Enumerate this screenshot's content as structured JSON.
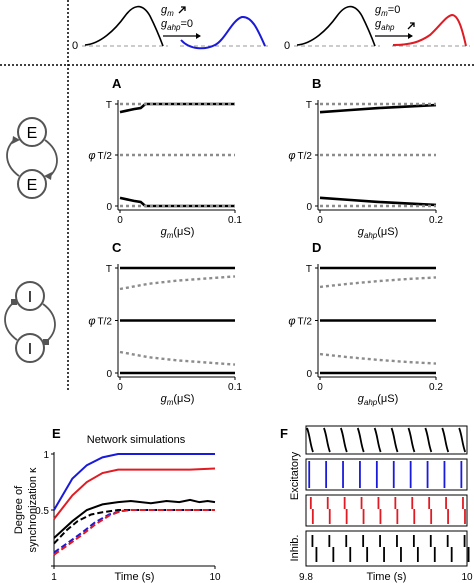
{
  "colors": {
    "black": "#000000",
    "blue": "#1a1adb",
    "red": "#e01b24",
    "gray": "#8c8c8c"
  },
  "header": {
    "left_zero": "0",
    "left_line1": "g",
    "left_line1_sub": "m",
    "left_line2": "g",
    "left_line2_sub": "ahp",
    "left_line2_rest": "=0",
    "right_zero": "0",
    "right_line1": "g",
    "right_line1_sub": "m",
    "right_line1_rest": "=0",
    "right_line2": "g",
    "right_line2_sub": "ahp"
  },
  "circuits": {
    "excitatory_node": "E",
    "inhibitory_node": "I"
  },
  "chart_data": [
    {
      "panel": "A",
      "type": "line",
      "ylabel": "φ",
      "xlabel": "g",
      "xlabel_sub": "m",
      "xunit": "(μS)",
      "xticks": [
        "0",
        "0.1"
      ],
      "yticks": [
        "0",
        "T/2",
        "T"
      ],
      "xlim": [
        0,
        0.1
      ],
      "ylim": [
        0,
        1
      ],
      "series": [
        {
          "style": "solid",
          "x": [
            0,
            0.008,
            0.012,
            0.018,
            0.022,
            0.1
          ],
          "y": [
            0.92,
            0.94,
            0.95,
            0.96,
            1.0,
            1.0
          ]
        },
        {
          "style": "solid",
          "x": [
            0,
            0.008,
            0.012,
            0.018,
            0.022,
            0.1
          ],
          "y": [
            0.08,
            0.06,
            0.05,
            0.04,
            0.0,
            0.0
          ]
        },
        {
          "style": "dotted",
          "x": [
            0,
            0.1
          ],
          "y": [
            1.0,
            1.0
          ]
        },
        {
          "style": "dotted",
          "x": [
            0,
            0.1
          ],
          "y": [
            0.5,
            0.5
          ]
        },
        {
          "style": "dotted",
          "x": [
            0,
            0.1
          ],
          "y": [
            0.0,
            0.0
          ]
        }
      ]
    },
    {
      "panel": "B",
      "type": "line",
      "ylabel": "φ",
      "xlabel": "g",
      "xlabel_sub": "ahp",
      "xunit": "(μS)",
      "xticks": [
        "0",
        "0.2"
      ],
      "yticks": [
        "0",
        "T/2",
        "T"
      ],
      "xlim": [
        0,
        0.2
      ],
      "ylim": [
        0,
        1
      ],
      "series": [
        {
          "style": "solid",
          "x": [
            0,
            0.05,
            0.1,
            0.15,
            0.2
          ],
          "y": [
            0.92,
            0.94,
            0.96,
            0.975,
            0.99
          ]
        },
        {
          "style": "solid",
          "x": [
            0,
            0.05,
            0.1,
            0.15,
            0.2
          ],
          "y": [
            0.08,
            0.06,
            0.04,
            0.025,
            0.01
          ]
        },
        {
          "style": "dotted",
          "x": [
            0,
            0.2
          ],
          "y": [
            1.0,
            1.0
          ]
        },
        {
          "style": "dotted",
          "x": [
            0,
            0.2
          ],
          "y": [
            0.5,
            0.5
          ]
        },
        {
          "style": "dotted",
          "x": [
            0,
            0.2
          ],
          "y": [
            0.0,
            0.0
          ]
        }
      ]
    },
    {
      "panel": "C",
      "type": "line",
      "ylabel": "φ",
      "xlabel": "g",
      "xlabel_sub": "m",
      "xunit": "(μS)",
      "xticks": [
        "0",
        "0.1"
      ],
      "yticks": [
        "0",
        "T/2",
        "T"
      ],
      "xlim": [
        0,
        0.1
      ],
      "ylim": [
        0,
        1
      ],
      "series": [
        {
          "style": "solid",
          "x": [
            0,
            0.1
          ],
          "y": [
            1.0,
            1.0
          ]
        },
        {
          "style": "solid",
          "x": [
            0,
            0.1
          ],
          "y": [
            0.5,
            0.5
          ]
        },
        {
          "style": "solid",
          "x": [
            0,
            0.1
          ],
          "y": [
            0.0,
            0.0
          ]
        },
        {
          "style": "dotted",
          "x": [
            0,
            0.025,
            0.05,
            0.075,
            0.1
          ],
          "y": [
            0.8,
            0.85,
            0.88,
            0.9,
            0.92
          ]
        },
        {
          "style": "dotted",
          "x": [
            0,
            0.025,
            0.05,
            0.075,
            0.1
          ],
          "y": [
            0.2,
            0.15,
            0.12,
            0.1,
            0.08
          ]
        }
      ]
    },
    {
      "panel": "D",
      "type": "line",
      "ylabel": "φ",
      "xlabel": "g",
      "xlabel_sub": "ahp",
      "xunit": "(μS)",
      "xticks": [
        "0",
        "0.2"
      ],
      "yticks": [
        "0",
        "T/2",
        "T"
      ],
      "xlim": [
        0,
        0.2
      ],
      "ylim": [
        0,
        1
      ],
      "series": [
        {
          "style": "solid",
          "x": [
            0,
            0.2
          ],
          "y": [
            1.0,
            1.0
          ]
        },
        {
          "style": "solid",
          "x": [
            0,
            0.2
          ],
          "y": [
            0.5,
            0.5
          ]
        },
        {
          "style": "solid",
          "x": [
            0,
            0.2
          ],
          "y": [
            0.0,
            0.0
          ]
        },
        {
          "style": "dotted",
          "x": [
            0,
            0.05,
            0.1,
            0.15,
            0.2
          ],
          "y": [
            0.82,
            0.85,
            0.875,
            0.895,
            0.91
          ]
        },
        {
          "style": "dotted",
          "x": [
            0,
            0.05,
            0.1,
            0.15,
            0.2
          ],
          "y": [
            0.18,
            0.15,
            0.125,
            0.105,
            0.09
          ]
        }
      ]
    },
    {
      "panel": "E",
      "type": "line",
      "title": "Network simulations",
      "ylabel": "Degree of synchronization κ",
      "xlabel": "Time (s)",
      "xticks": [
        "1",
        "10"
      ],
      "yticks": [
        "0",
        "0.5",
        "1"
      ],
      "xlim": [
        1,
        10
      ],
      "ylim": [
        0,
        1
      ],
      "series": [
        {
          "color": "blue",
          "style": "solid",
          "x": [
            1,
            1.3,
            1.6,
            2,
            2.5,
            3,
            10
          ],
          "y": [
            0.5,
            0.78,
            0.9,
            0.97,
            1.0,
            1.0,
            1.0
          ]
        },
        {
          "color": "red",
          "style": "solid",
          "x": [
            1,
            1.3,
            1.6,
            2,
            2.5,
            3,
            5,
            7,
            10
          ],
          "y": [
            0.42,
            0.63,
            0.75,
            0.83,
            0.86,
            0.86,
            0.86,
            0.86,
            0.87
          ]
        },
        {
          "color": "black",
          "style": "solid",
          "x": [
            1,
            1.3,
            1.6,
            2,
            2.5,
            3,
            4,
            5,
            6,
            7,
            8,
            9,
            10
          ],
          "y": [
            0.25,
            0.4,
            0.5,
            0.55,
            0.57,
            0.58,
            0.56,
            0.58,
            0.57,
            0.59,
            0.57,
            0.58,
            0.57
          ]
        },
        {
          "color": "black",
          "style": "dashed",
          "x": [
            1,
            1.2,
            1.4,
            1.7,
            2,
            2.5,
            3,
            10
          ],
          "y": [
            0.2,
            0.32,
            0.4,
            0.46,
            0.48,
            0.5,
            0.5,
            0.5
          ]
        },
        {
          "color": "blue",
          "style": "dashed",
          "x": [
            1,
            1.2,
            1.5,
            1.8,
            2.2,
            2.6,
            3,
            10
          ],
          "y": [
            0.12,
            0.2,
            0.3,
            0.39,
            0.46,
            0.49,
            0.5,
            0.5
          ]
        },
        {
          "color": "red",
          "style": "dashed",
          "x": [
            1,
            1.2,
            1.5,
            1.8,
            2.2,
            2.6,
            3,
            10
          ],
          "y": [
            0.1,
            0.18,
            0.28,
            0.37,
            0.45,
            0.49,
            0.5,
            0.5
          ]
        }
      ]
    },
    {
      "panel": "F",
      "type": "scatter",
      "xlabel": "Time (s)",
      "xticks": [
        "9.8",
        "10"
      ],
      "xlim": [
        9.8,
        10
      ],
      "row_labels": [
        "Excitatory",
        "Inhib."
      ],
      "rows": [
        {
          "color": "black",
          "style": "curved",
          "spikes": [
            9.805,
            9.826,
            9.847,
            9.868,
            9.889,
            9.91,
            9.931,
            9.952,
            9.973,
            9.994
          ]
        },
        {
          "color": "blue",
          "style": "straight",
          "spikes": [
            9.804,
            9.825,
            9.846,
            9.867,
            9.888,
            9.909,
            9.93,
            9.951,
            9.972,
            9.993
          ]
        },
        {
          "color": "red",
          "style": "split",
          "spikes": [
            9.806,
            9.827,
            9.848,
            9.869,
            9.89,
            9.911,
            9.932,
            9.953,
            9.974,
            9.995
          ]
        },
        {
          "color": "black",
          "style": "staggered",
          "spikes": [
            9.808,
            9.829,
            9.85,
            9.871,
            9.892,
            9.913,
            9.934,
            9.955,
            9.976,
            9.997
          ]
        }
      ]
    }
  ]
}
